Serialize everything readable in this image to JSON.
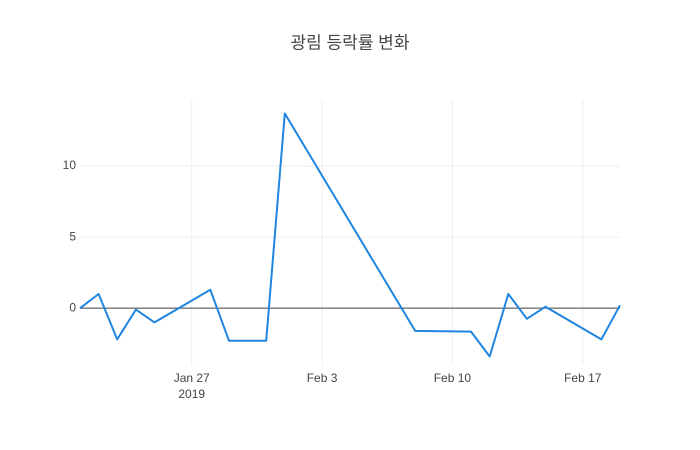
{
  "chart_data": {
    "type": "line",
    "title": "광림 등락률 변화",
    "x": [
      "2019-01-21",
      "2019-01-22",
      "2019-01-23",
      "2019-01-24",
      "2019-01-25",
      "2019-01-28",
      "2019-01-29",
      "2019-01-31",
      "2019-02-01",
      "2019-02-08",
      "2019-02-11",
      "2019-02-12",
      "2019-02-13",
      "2019-02-14",
      "2019-02-15",
      "2019-02-18",
      "2019-02-19"
    ],
    "series": [
      {
        "name": "등락률",
        "color": "#1f85de",
        "values": [
          0,
          1.0,
          -2.2,
          -0.1,
          -1.0,
          1.3,
          -2.3,
          -2.3,
          13.7,
          -1.6,
          -1.65,
          -3.4,
          1.0,
          -0.75,
          0.1,
          -2.2,
          0.2
        ]
      }
    ],
    "xlim": [
      "2019-01-21",
      "2019-02-19"
    ],
    "xticks": [
      {
        "value": "2019-01-27",
        "label": "Jan 27"
      },
      {
        "value": "2019-02-03",
        "label": "Feb 3"
      },
      {
        "value": "2019-02-10",
        "label": "Feb 10"
      },
      {
        "value": "2019-02-17",
        "label": "Feb 17"
      }
    ],
    "x_year_label": "2019",
    "ylim": [
      -4.0,
      14.65
    ],
    "yticks": [
      0,
      5,
      10
    ],
    "grid": true,
    "zeroline": true
  }
}
